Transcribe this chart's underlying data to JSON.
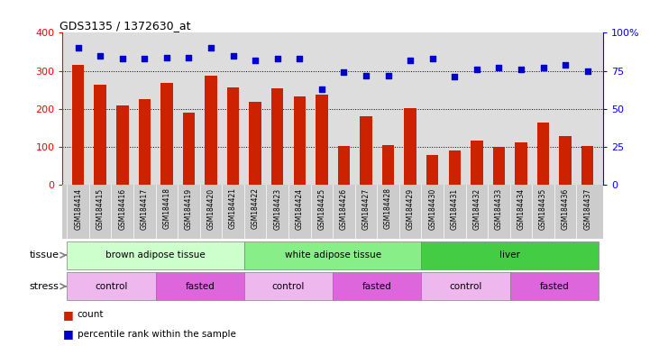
{
  "title": "GDS3135 / 1372630_at",
  "samples": [
    "GSM184414",
    "GSM184415",
    "GSM184416",
    "GSM184417",
    "GSM184418",
    "GSM184419",
    "GSM184420",
    "GSM184421",
    "GSM184422",
    "GSM184423",
    "GSM184424",
    "GSM184425",
    "GSM184426",
    "GSM184427",
    "GSM184428",
    "GSM184429",
    "GSM184430",
    "GSM184431",
    "GSM184432",
    "GSM184433",
    "GSM184434",
    "GSM184435",
    "GSM184436",
    "GSM184437"
  ],
  "counts": [
    315,
    263,
    210,
    226,
    268,
    191,
    287,
    256,
    220,
    255,
    232,
    237,
    102,
    180,
    106,
    202,
    80,
    92,
    117,
    101,
    112,
    165,
    128,
    102
  ],
  "percentiles": [
    90,
    85,
    83,
    83,
    84,
    84,
    90,
    85,
    82,
    83,
    83,
    63,
    74,
    72,
    72,
    82,
    83,
    71,
    76,
    77,
    76,
    77,
    79,
    75
  ],
  "bar_color": "#cc2200",
  "dot_color": "#0000cc",
  "tissue_groups": [
    {
      "label": "brown adipose tissue",
      "start": 0,
      "end": 7,
      "color": "#ccffcc"
    },
    {
      "label": "white adipose tissue",
      "start": 8,
      "end": 15,
      "color": "#88ee88"
    },
    {
      "label": "liver",
      "start": 16,
      "end": 23,
      "color": "#44cc44"
    }
  ],
  "stress_groups": [
    {
      "label": "control",
      "start": 0,
      "end": 3,
      "color": "#eeb8ee"
    },
    {
      "label": "fasted",
      "start": 4,
      "end": 7,
      "color": "#dd66dd"
    },
    {
      "label": "control",
      "start": 8,
      "end": 11,
      "color": "#eeb8ee"
    },
    {
      "label": "fasted",
      "start": 12,
      "end": 15,
      "color": "#dd66dd"
    },
    {
      "label": "control",
      "start": 16,
      "end": 19,
      "color": "#eeb8ee"
    },
    {
      "label": "fasted",
      "start": 20,
      "end": 23,
      "color": "#dd66dd"
    }
  ],
  "ylim_left": [
    0,
    400
  ],
  "ylim_right": [
    0,
    100
  ],
  "yticks_left": [
    0,
    100,
    200,
    300,
    400
  ],
  "yticks_right": [
    0,
    25,
    50,
    75,
    100
  ],
  "ytick_labels_right": [
    "0",
    "25",
    "50",
    "75",
    "100%"
  ],
  "grid_values": [
    100,
    200,
    300
  ],
  "plot_bg_color": "#dddddd",
  "xticklabel_bg": "#cccccc"
}
